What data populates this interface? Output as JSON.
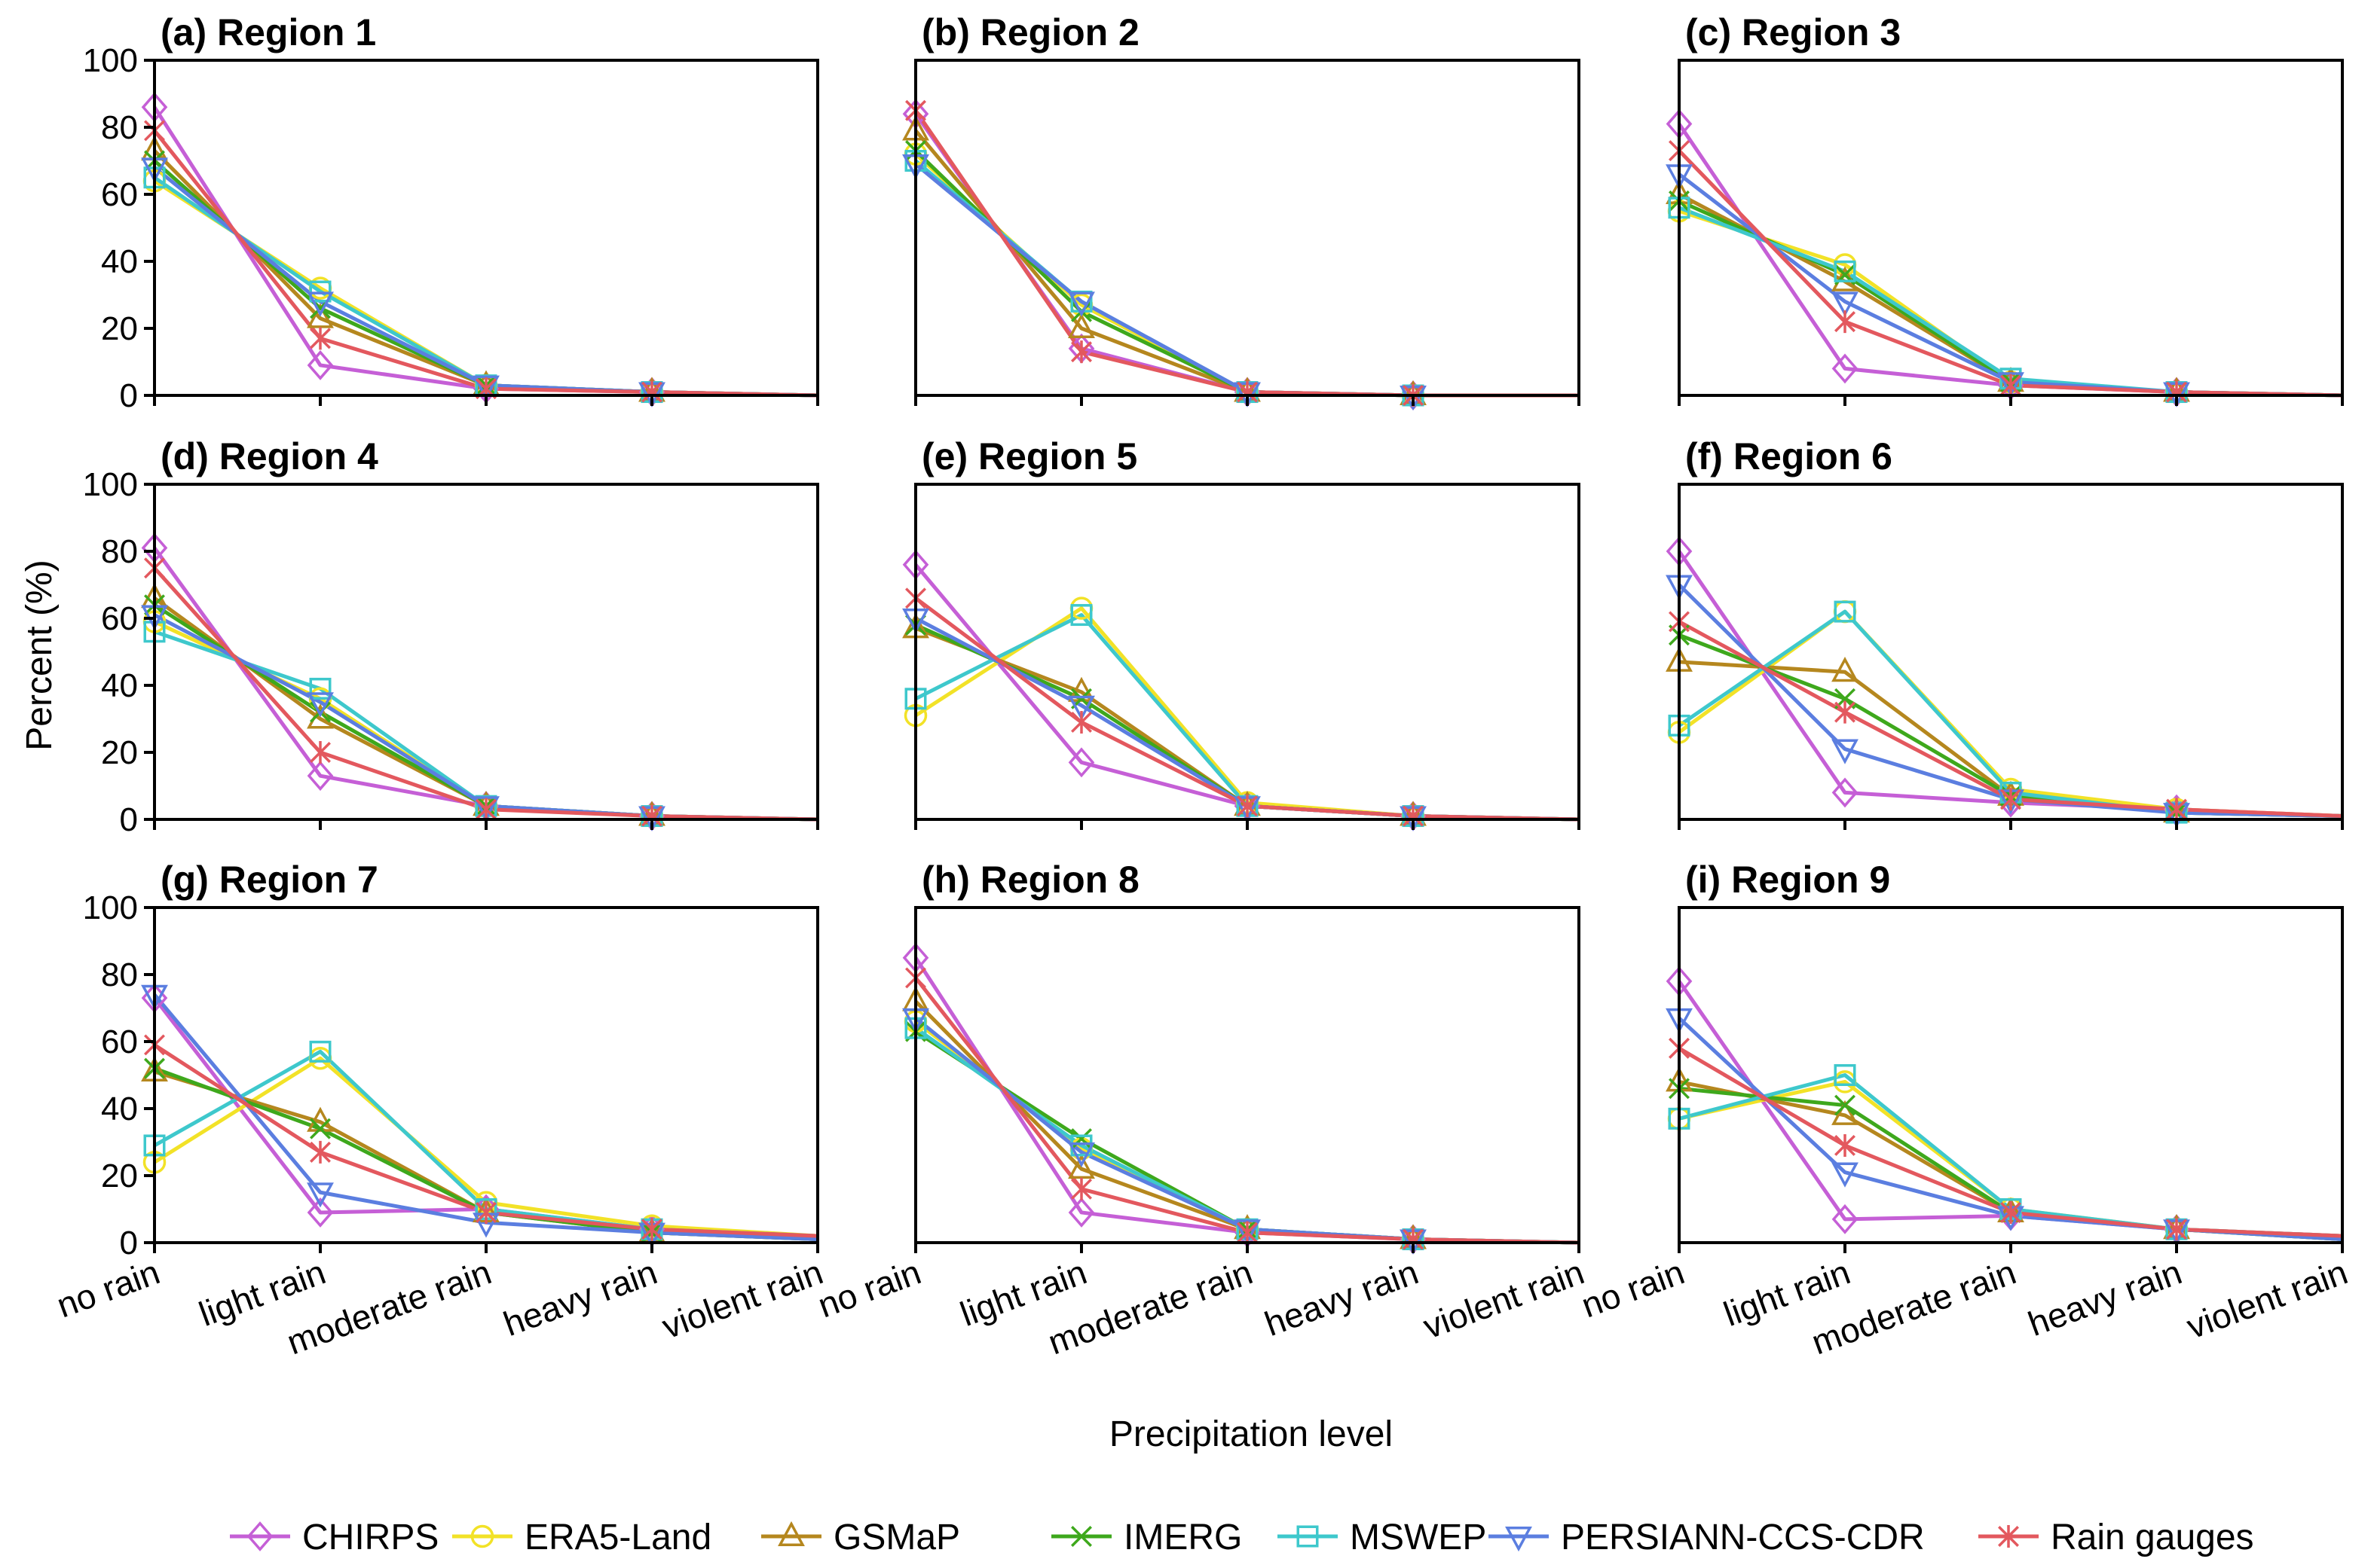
{
  "chart_data": {
    "type": "line",
    "xlabel": "Precipitation level",
    "ylabel": "Percent (%)",
    "ylim": [
      0,
      100
    ],
    "yticks": [
      "0",
      "20",
      "40",
      "60",
      "80",
      "100"
    ],
    "categories": [
      "no rain",
      "light rain",
      "moderate rain",
      "heavy rain",
      "violent rain"
    ],
    "legend_position": "bottom",
    "series_styles": [
      {
        "name": "CHIRPS",
        "color": "#c55fd6",
        "marker": "diamond"
      },
      {
        "name": "ERA5-Land",
        "color": "#f2e227",
        "marker": "circle"
      },
      {
        "name": "GSMaP",
        "color": "#b5871e",
        "marker": "triangle-up"
      },
      {
        "name": "IMERG",
        "color": "#3ea81c",
        "marker": "x"
      },
      {
        "name": "MSWEP",
        "color": "#3ec8cc",
        "marker": "square"
      },
      {
        "name": "PERSIANN-CCS-CDR",
        "color": "#5b7ee0",
        "marker": "triangle-down"
      },
      {
        "name": "Rain gauges",
        "color": "#e3585e",
        "marker": "asterisk"
      }
    ],
    "panels": [
      {
        "title": "(a) Region 1",
        "series": [
          {
            "name": "CHIRPS",
            "values": [
              86,
              9,
              2,
              1,
              0
            ]
          },
          {
            "name": "ERA5-Land",
            "values": [
              64,
              32,
              3,
              1,
              0
            ]
          },
          {
            "name": "GSMaP",
            "values": [
              73,
              23,
              3,
              1,
              0
            ]
          },
          {
            "name": "IMERG",
            "values": [
              70,
              26,
              3,
              1,
              0
            ]
          },
          {
            "name": "MSWEP",
            "values": [
              65,
              31,
              3,
              1,
              0
            ]
          },
          {
            "name": "PERSIANN-CCS-CDR",
            "values": [
              68,
              28,
              3,
              1,
              0
            ]
          },
          {
            "name": "Rain gauges",
            "values": [
              79,
              17,
              2,
              1,
              0
            ]
          }
        ]
      },
      {
        "title": "(b) Region 2",
        "series": [
          {
            "name": "CHIRPS",
            "values": [
              84,
              14,
              1,
              0,
              0
            ]
          },
          {
            "name": "ERA5-Land",
            "values": [
              72,
              27,
              1,
              0,
              0
            ]
          },
          {
            "name": "GSMaP",
            "values": [
              79,
              20,
              1,
              0,
              0
            ]
          },
          {
            "name": "IMERG",
            "values": [
              73,
              25,
              1,
              0,
              0
            ]
          },
          {
            "name": "MSWEP",
            "values": [
              70,
              28,
              1,
              0,
              0
            ]
          },
          {
            "name": "PERSIANN-CCS-CDR",
            "values": [
              69,
              28,
              1,
              0,
              0
            ]
          },
          {
            "name": "Rain gauges",
            "values": [
              85,
              13,
              1,
              0,
              0
            ]
          }
        ]
      },
      {
        "title": "(c) Region 3",
        "series": [
          {
            "name": "CHIRPS",
            "values": [
              81,
              8,
              3,
              1,
              0
            ]
          },
          {
            "name": "ERA5-Land",
            "values": [
              55,
              39,
              4,
              1,
              0
            ]
          },
          {
            "name": "GSMaP",
            "values": [
              60,
              34,
              4,
              1,
              0
            ]
          },
          {
            "name": "IMERG",
            "values": [
              58,
              36,
              4,
              1,
              0
            ]
          },
          {
            "name": "MSWEP",
            "values": [
              56,
              37,
              5,
              1,
              0
            ]
          },
          {
            "name": "PERSIANN-CCS-CDR",
            "values": [
              66,
              28,
              4,
              1,
              0
            ]
          },
          {
            "name": "Rain gauges",
            "values": [
              73,
              22,
              3,
              1,
              0
            ]
          }
        ]
      },
      {
        "title": "(d) Region 4",
        "series": [
          {
            "name": "CHIRPS",
            "values": [
              81,
              13,
              4,
              1,
              0
            ]
          },
          {
            "name": "ERA5-Land",
            "values": [
              59,
              36,
              4,
              1,
              0
            ]
          },
          {
            "name": "GSMaP",
            "values": [
              66,
              30,
              4,
              1,
              0
            ]
          },
          {
            "name": "IMERG",
            "values": [
              64,
              32,
              4,
              1,
              0
            ]
          },
          {
            "name": "MSWEP",
            "values": [
              56,
              39,
              4,
              1,
              0
            ]
          },
          {
            "name": "PERSIANN-CCS-CDR",
            "values": [
              61,
              35,
              4,
              1,
              0
            ]
          },
          {
            "name": "Rain gauges",
            "values": [
              75,
              20,
              3,
              1,
              0
            ]
          }
        ]
      },
      {
        "title": "(e) Region 5",
        "series": [
          {
            "name": "CHIRPS",
            "values": [
              76,
              17,
              4,
              1,
              0
            ]
          },
          {
            "name": "ERA5-Land",
            "values": [
              31,
              63,
              5,
              1,
              0
            ]
          },
          {
            "name": "GSMaP",
            "values": [
              57,
              38,
              4,
              1,
              0
            ]
          },
          {
            "name": "IMERG",
            "values": [
              58,
              36,
              4,
              1,
              0
            ]
          },
          {
            "name": "MSWEP",
            "values": [
              36,
              61,
              4,
              1,
              0
            ]
          },
          {
            "name": "PERSIANN-CCS-CDR",
            "values": [
              60,
              34,
              4,
              1,
              0
            ]
          },
          {
            "name": "Rain gauges",
            "values": [
              66,
              29,
              4,
              1,
              0
            ]
          }
        ]
      },
      {
        "title": "(f) Region 6",
        "series": [
          {
            "name": "CHIRPS",
            "values": [
              80,
              8,
              5,
              3,
              1
            ]
          },
          {
            "name": "ERA5-Land",
            "values": [
              26,
              62,
              9,
              3,
              1
            ]
          },
          {
            "name": "GSMaP",
            "values": [
              47,
              44,
              7,
              2,
              1
            ]
          },
          {
            "name": "IMERG",
            "values": [
              55,
              36,
              7,
              2,
              1
            ]
          },
          {
            "name": "MSWEP",
            "values": [
              28,
              62,
              8,
              2,
              1
            ]
          },
          {
            "name": "PERSIANN-CCS-CDR",
            "values": [
              70,
              21,
              6,
              2,
              1
            ]
          },
          {
            "name": "Rain gauges",
            "values": [
              59,
              32,
              6,
              3,
              1
            ]
          }
        ]
      },
      {
        "title": "(g) Region 7",
        "series": [
          {
            "name": "CHIRPS",
            "values": [
              73,
              9,
              10,
              4,
              2
            ]
          },
          {
            "name": "ERA5-Land",
            "values": [
              24,
              55,
              12,
              5,
              2
            ]
          },
          {
            "name": "GSMaP",
            "values": [
              51,
              36,
              9,
              3,
              1
            ]
          },
          {
            "name": "IMERG",
            "values": [
              52,
              34,
              9,
              3,
              1
            ]
          },
          {
            "name": "MSWEP",
            "values": [
              29,
              57,
              10,
              4,
              2
            ]
          },
          {
            "name": "PERSIANN-CCS-CDR",
            "values": [
              74,
              15,
              6,
              3,
              1
            ]
          },
          {
            "name": "Rain gauges",
            "values": [
              59,
              27,
              9,
              4,
              2
            ]
          }
        ]
      },
      {
        "title": "(h) Region 8",
        "series": [
          {
            "name": "CHIRPS",
            "values": [
              85,
              9,
              3,
              1,
              0
            ]
          },
          {
            "name": "ERA5-Land",
            "values": [
              66,
              28,
              4,
              1,
              0
            ]
          },
          {
            "name": "GSMaP",
            "values": [
              72,
              22,
              4,
              1,
              0
            ]
          },
          {
            "name": "IMERG",
            "values": [
              63,
              31,
              4,
              1,
              0
            ]
          },
          {
            "name": "MSWEP",
            "values": [
              64,
              29,
              4,
              1,
              0
            ]
          },
          {
            "name": "PERSIANN-CCS-CDR",
            "values": [
              67,
              27,
              4,
              1,
              0
            ]
          },
          {
            "name": "Rain gauges",
            "values": [
              79,
              16,
              3,
              1,
              0
            ]
          }
        ]
      },
      {
        "title": "(i) Region 9",
        "series": [
          {
            "name": "CHIRPS",
            "values": [
              78,
              7,
              8,
              4,
              2
            ]
          },
          {
            "name": "ERA5-Land",
            "values": [
              37,
              48,
              10,
              4,
              2
            ]
          },
          {
            "name": "GSMaP",
            "values": [
              48,
              38,
              9,
              4,
              1
            ]
          },
          {
            "name": "IMERG",
            "values": [
              46,
              41,
              9,
              4,
              1
            ]
          },
          {
            "name": "MSWEP",
            "values": [
              37,
              50,
              10,
              4,
              2
            ]
          },
          {
            "name": "PERSIANN-CCS-CDR",
            "values": [
              67,
              21,
              8,
              4,
              1
            ]
          },
          {
            "name": "Rain gauges",
            "values": [
              58,
              29,
              9,
              4,
              2
            ]
          }
        ]
      }
    ]
  }
}
